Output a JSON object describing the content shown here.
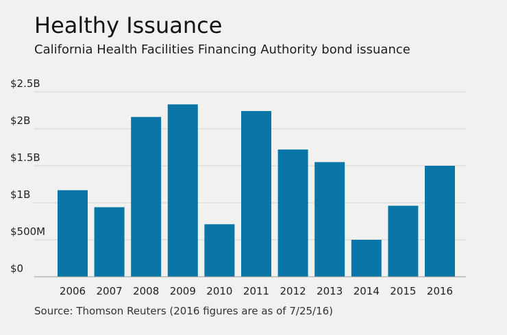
{
  "title": "Healthy Issuance",
  "subtitle": "California Health Facilities Financing Authority bond issuance",
  "source": "Source: Thomson Reuters (2016 figures are as of 7/25/16)",
  "chart_data": {
    "type": "bar",
    "title": "Healthy Issuance",
    "subtitle": "California Health Facilities Financing Authority bond issuance",
    "xlabel": "",
    "ylabel": "",
    "unit": "billions of dollars",
    "categories": [
      "2006",
      "2007",
      "2008",
      "2009",
      "2010",
      "2011",
      "2012",
      "2013",
      "2014",
      "2015",
      "2016"
    ],
    "values": [
      1.17,
      0.94,
      2.16,
      2.33,
      0.71,
      2.24,
      1.72,
      1.55,
      0.5,
      0.96,
      1.5
    ],
    "ylim": [
      0,
      2.5
    ],
    "yticks": [
      0,
      0.5,
      1,
      1.5,
      2,
      2.5
    ],
    "ytick_labels": [
      "$0",
      "$500M",
      "$1B",
      "$1.5B",
      "$2B",
      "$2.5B"
    ],
    "grid": true,
    "legend": "none"
  },
  "colors": {
    "bar": "#0a76a8",
    "grid": "#d4d4d4",
    "axis": "#9a9a9a",
    "background": "#f1f1f0"
  }
}
